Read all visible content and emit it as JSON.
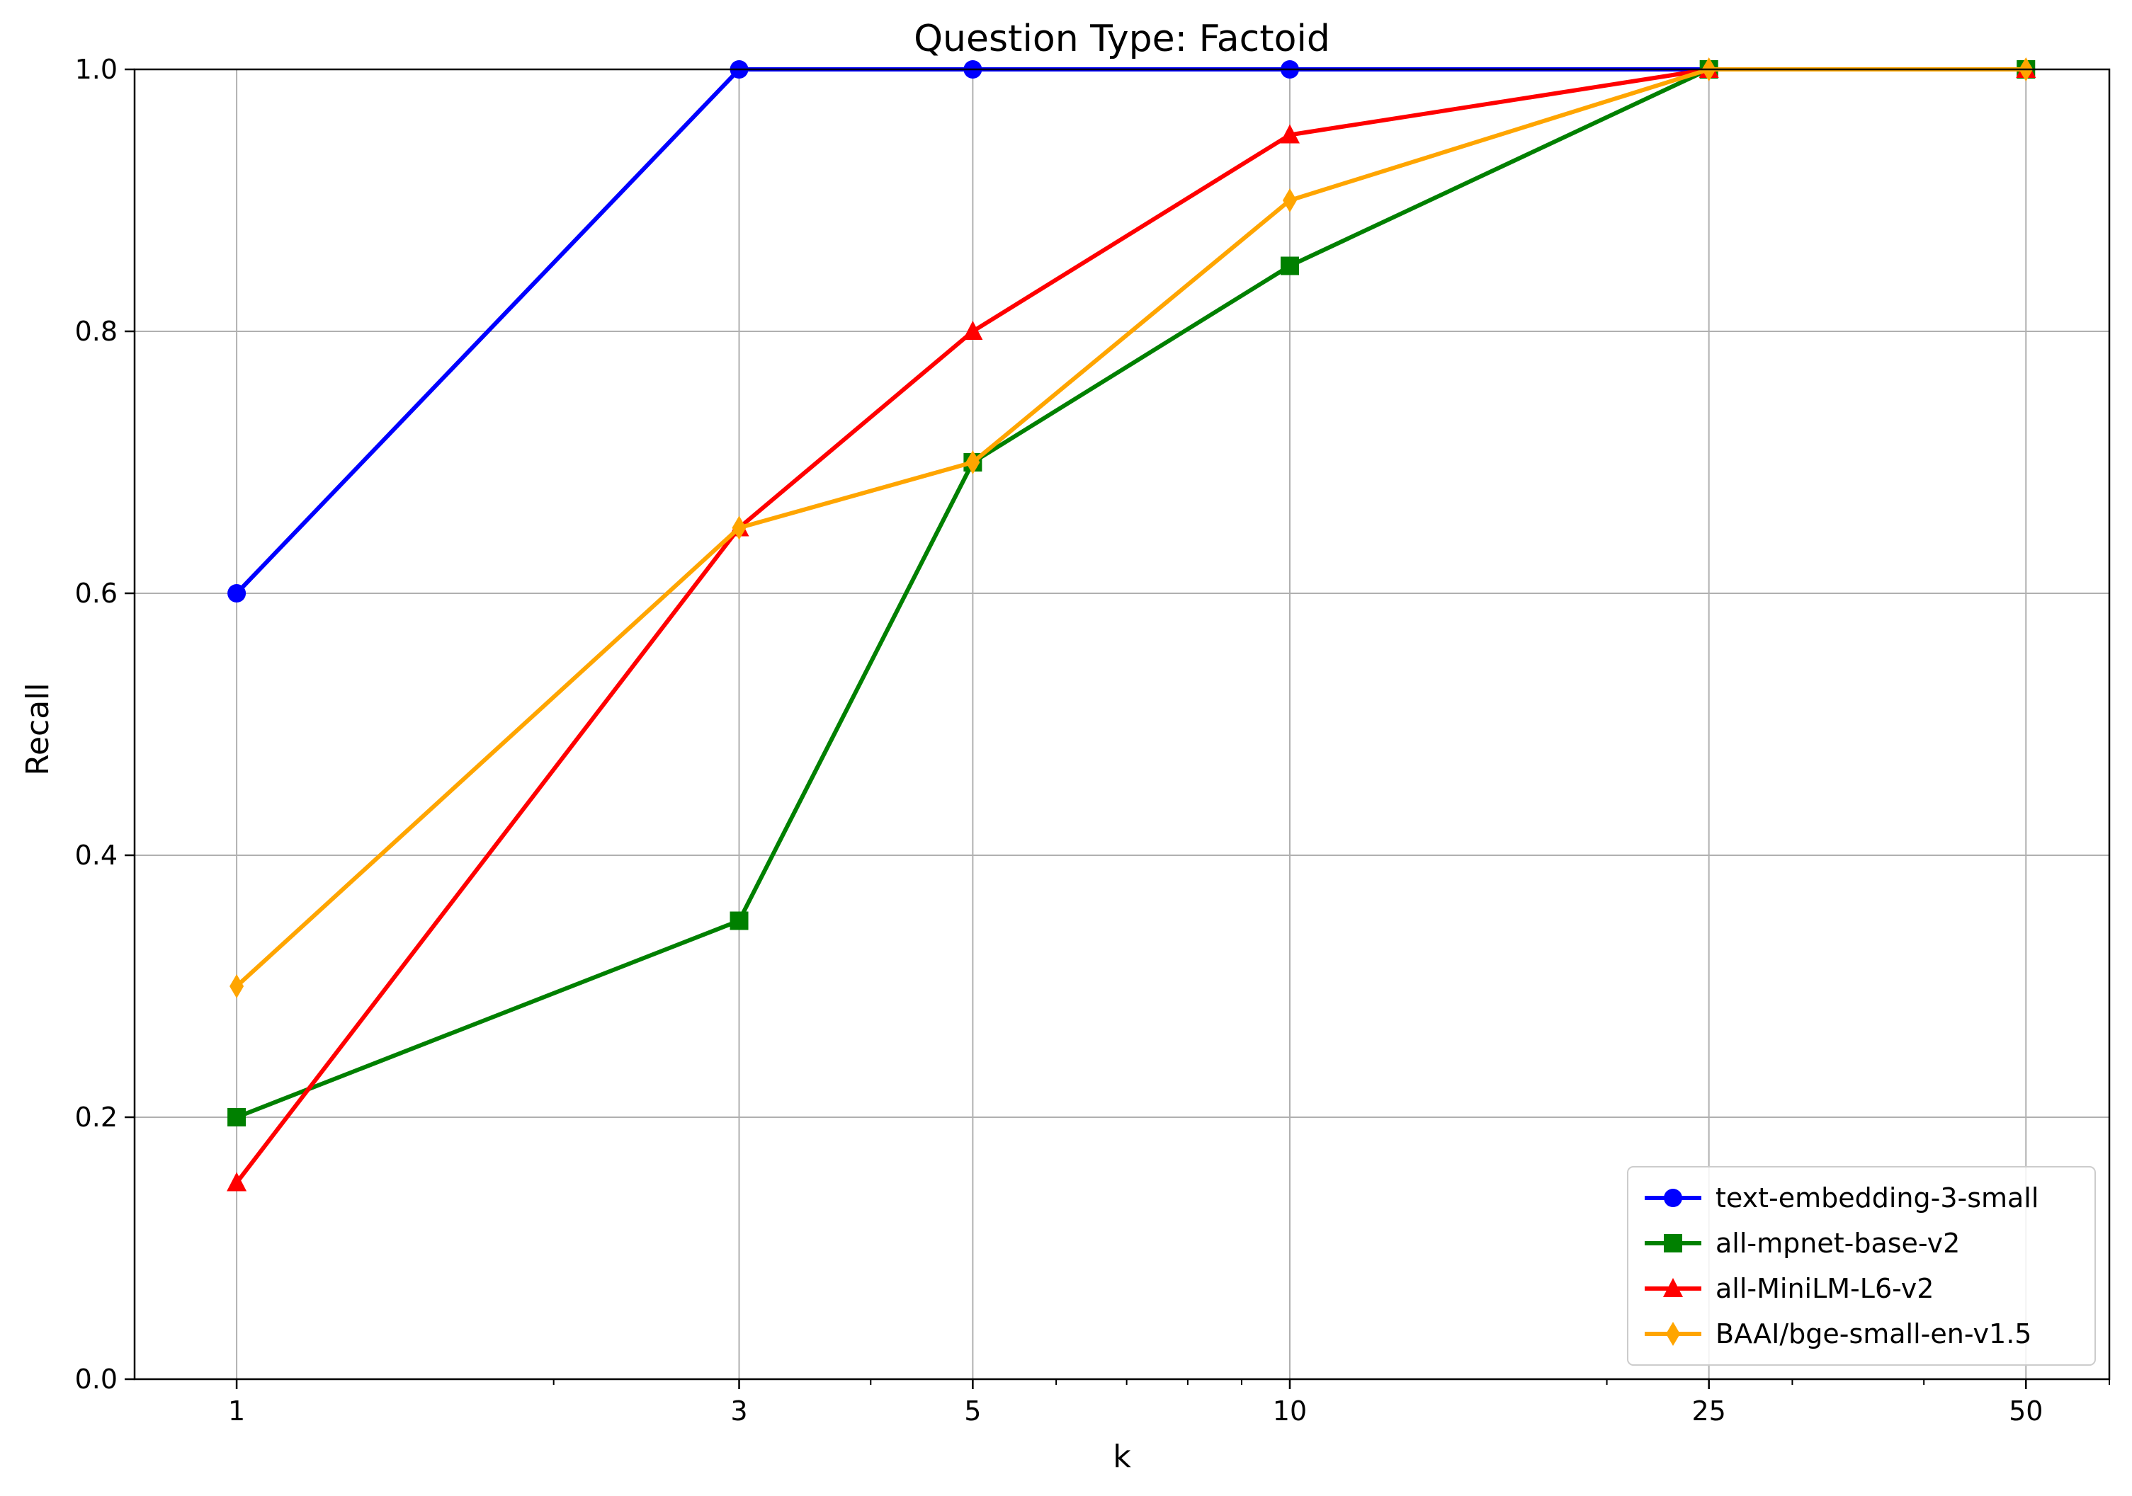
{
  "chart_data": {
    "type": "line",
    "title": "Question Type: Factoid",
    "xlabel": "k",
    "ylabel": "Recall",
    "x_scale": "log",
    "xlim": [
      0.8,
      60
    ],
    "ylim": [
      0.0,
      1.0
    ],
    "x": [
      1,
      3,
      5,
      10,
      25,
      50
    ],
    "x_tick_labels": [
      "1",
      "3",
      "5",
      "10",
      "25",
      "50"
    ],
    "y_ticks": [
      0.0,
      0.2,
      0.4,
      0.6,
      0.8,
      1.0
    ],
    "y_tick_labels": [
      "0.0",
      "0.2",
      "0.4",
      "0.6",
      "0.8",
      "1.0"
    ],
    "grid": true,
    "legend_position": "bottom-right",
    "series": [
      {
        "name": "text-embedding-3-small",
        "color": "#0000ff",
        "marker": "circle",
        "values": [
          0.6,
          1.0,
          1.0,
          1.0,
          1.0,
          1.0
        ]
      },
      {
        "name": "all-mpnet-base-v2",
        "color": "#008000",
        "marker": "square",
        "values": [
          0.2,
          0.35,
          0.7,
          0.85,
          1.0,
          1.0
        ]
      },
      {
        "name": "all-MiniLM-L6-v2",
        "color": "#ff0000",
        "marker": "triangle",
        "values": [
          0.15,
          0.65,
          0.8,
          0.95,
          1.0,
          1.0
        ]
      },
      {
        "name": "BAAI/bge-small-en-v1.5",
        "color": "#ffa500",
        "marker": "diamond",
        "values": [
          0.3,
          0.65,
          0.7,
          0.9,
          1.0,
          1.0
        ]
      }
    ]
  }
}
